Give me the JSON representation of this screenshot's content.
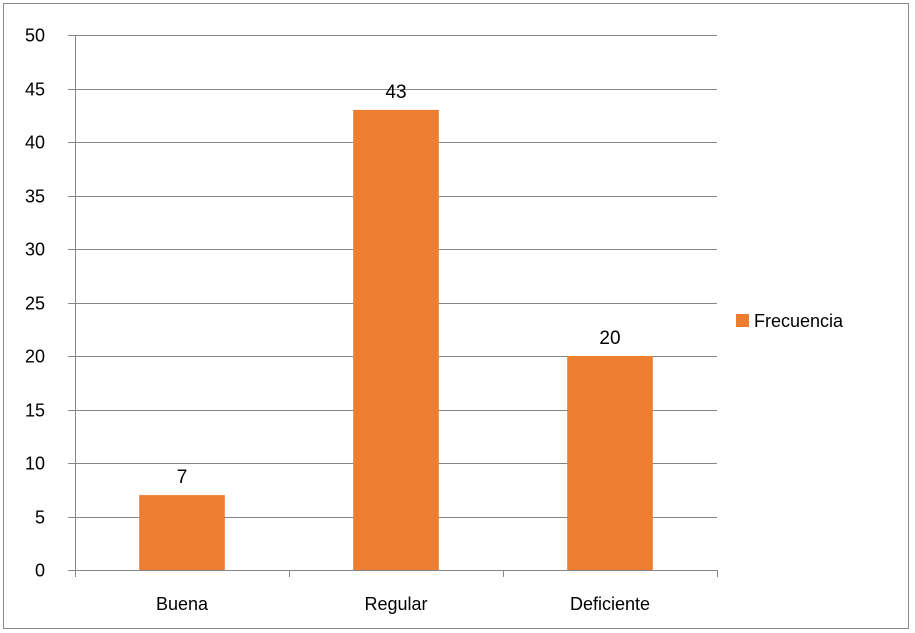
{
  "chart_data": {
    "type": "bar",
    "categories": [
      "Buena",
      "Regular",
      "Deficiente"
    ],
    "series": [
      {
        "name": "Frecuencia",
        "values": [
          7,
          43,
          20
        ],
        "color": "#ed7d31"
      }
    ],
    "title": "",
    "xlabel": "",
    "ylabel": "",
    "ylim": [
      0,
      50
    ],
    "yticks": [
      0,
      5,
      10,
      15,
      20,
      25,
      30,
      35,
      40,
      45,
      50
    ],
    "grid": true,
    "legend_position": "right",
    "data_labels": true,
    "gridline_color": "#868686"
  }
}
